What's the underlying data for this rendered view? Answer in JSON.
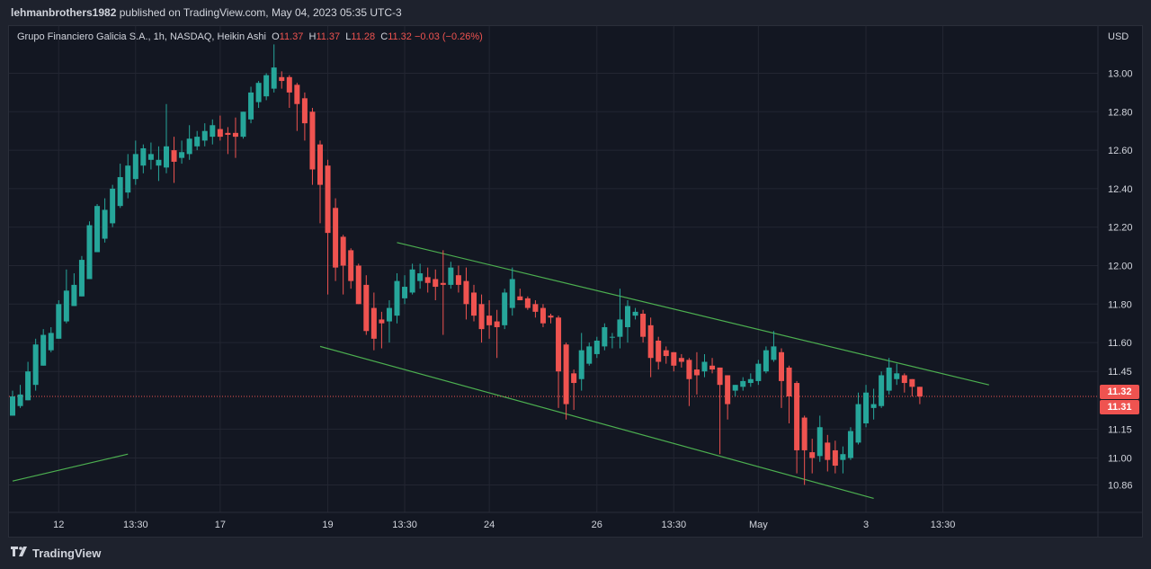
{
  "header": {
    "author": "lehmanbrothers1982",
    "published_text": " published on TradingView.com, May 04, 2023 05:35 UTC-3"
  },
  "legend": {
    "symbol": "Grupo Financiero Galicia S.A., 1h, NASDAQ, Heikin Ashi",
    "o_label": "O",
    "o_value": "11.37",
    "h_label": "H",
    "h_value": "11.37",
    "l_label": "L",
    "l_value": "11.28",
    "c_label": "C",
    "c_value": "11.32",
    "change": "−0.03 (−0.26%)"
  },
  "axis": {
    "currency": "USD",
    "last_price_tag": "11.32",
    "second_price_tag": "11.31"
  },
  "footer": {
    "brand": "TradingView"
  },
  "chart_data": {
    "type": "candlestick",
    "style": "Heikin Ashi",
    "symbol": "Grupo Financiero Galicia S.A.",
    "interval": "1h",
    "exchange": "NASDAQ",
    "currency": "USD",
    "y_ticks": [
      13.0,
      12.8,
      12.6,
      12.4,
      12.2,
      12.0,
      11.8,
      11.6,
      11.45,
      11.15,
      11.0,
      10.86
    ],
    "y_tick_labels": [
      "13.00",
      "12.80",
      "12.60",
      "12.40",
      "12.20",
      "12.00",
      "11.80",
      "11.60",
      "11.45",
      "11.15",
      "11.00",
      "10.86"
    ],
    "x_ticks": [
      {
        "label": "12",
        "bar": 6
      },
      {
        "label": "13:30",
        "bar": 16
      },
      {
        "label": "17",
        "bar": 27
      },
      {
        "label": "19",
        "bar": 41
      },
      {
        "label": "13:30",
        "bar": 51
      },
      {
        "label": "24",
        "bar": 62
      },
      {
        "label": "26",
        "bar": 76
      },
      {
        "label": "13:30",
        "bar": 86
      },
      {
        "label": "May",
        "bar": 97
      },
      {
        "label": "3",
        "bar": 111
      },
      {
        "label": "13:30",
        "bar": 121
      }
    ],
    "ylim": [
      10.7,
      13.2
    ],
    "last_price": 11.32,
    "up_color": "#26a69a",
    "down_color": "#ef5350",
    "trendline_color": "#4caf50",
    "trendlines": [
      {
        "from": {
          "bar": 0,
          "price": 10.88
        },
        "to": {
          "bar": 15,
          "price": 11.02
        }
      },
      {
        "from": {
          "bar": 50,
          "price": 12.12
        },
        "to": {
          "bar": 127,
          "price": 11.38
        }
      },
      {
        "from": {
          "bar": 40,
          "price": 11.58
        },
        "to": {
          "bar": 112,
          "price": 10.79
        }
      }
    ],
    "candles": [
      {
        "o": 11.22,
        "h": 11.35,
        "l": 11.22,
        "c": 11.32
      },
      {
        "o": 11.27,
        "h": 11.38,
        "l": 11.26,
        "c": 11.33
      },
      {
        "o": 11.3,
        "h": 11.5,
        "l": 11.3,
        "c": 11.45
      },
      {
        "o": 11.38,
        "h": 11.62,
        "l": 11.35,
        "c": 11.59
      },
      {
        "o": 11.48,
        "h": 11.67,
        "l": 11.48,
        "c": 11.64
      },
      {
        "o": 11.56,
        "h": 11.68,
        "l": 11.55,
        "c": 11.65
      },
      {
        "o": 11.62,
        "h": 11.82,
        "l": 11.62,
        "c": 11.8
      },
      {
        "o": 11.71,
        "h": 11.98,
        "l": 11.7,
        "c": 11.87
      },
      {
        "o": 11.79,
        "h": 11.96,
        "l": 11.79,
        "c": 11.9
      },
      {
        "o": 11.84,
        "h": 12.05,
        "l": 11.84,
        "c": 12.03
      },
      {
        "o": 11.93,
        "h": 12.23,
        "l": 11.93,
        "c": 12.21
      },
      {
        "o": 12.07,
        "h": 12.32,
        "l": 12.07,
        "c": 12.31
      },
      {
        "o": 12.14,
        "h": 12.35,
        "l": 12.12,
        "c": 12.29
      },
      {
        "o": 12.22,
        "h": 12.42,
        "l": 12.2,
        "c": 12.4
      },
      {
        "o": 12.31,
        "h": 12.53,
        "l": 12.3,
        "c": 12.46
      },
      {
        "o": 12.38,
        "h": 12.58,
        "l": 12.35,
        "c": 12.52
      },
      {
        "o": 12.45,
        "h": 12.65,
        "l": 12.42,
        "c": 12.58
      },
      {
        "o": 12.52,
        "h": 12.63,
        "l": 12.48,
        "c": 12.61
      },
      {
        "o": 12.55,
        "h": 12.64,
        "l": 12.5,
        "c": 12.58
      },
      {
        "o": 12.52,
        "h": 12.62,
        "l": 12.44,
        "c": 12.55
      },
      {
        "o": 12.51,
        "h": 12.84,
        "l": 12.48,
        "c": 12.62
      },
      {
        "o": 12.6,
        "h": 12.67,
        "l": 12.43,
        "c": 12.54
      },
      {
        "o": 12.56,
        "h": 12.65,
        "l": 12.53,
        "c": 12.59
      },
      {
        "o": 12.58,
        "h": 12.73,
        "l": 12.55,
        "c": 12.66
      },
      {
        "o": 12.62,
        "h": 12.7,
        "l": 12.6,
        "c": 12.67
      },
      {
        "o": 12.65,
        "h": 12.74,
        "l": 12.62,
        "c": 12.7
      },
      {
        "o": 12.67,
        "h": 12.76,
        "l": 12.63,
        "c": 12.73
      },
      {
        "o": 12.71,
        "h": 12.78,
        "l": 12.65,
        "c": 12.67
      },
      {
        "o": 12.69,
        "h": 12.72,
        "l": 12.58,
        "c": 12.68
      },
      {
        "o": 12.69,
        "h": 12.77,
        "l": 12.56,
        "c": 12.67
      },
      {
        "o": 12.67,
        "h": 12.8,
        "l": 12.66,
        "c": 12.8
      },
      {
        "o": 12.76,
        "h": 12.93,
        "l": 12.74,
        "c": 12.9
      },
      {
        "o": 12.85,
        "h": 12.96,
        "l": 12.82,
        "c": 12.95
      },
      {
        "o": 12.88,
        "h": 13.0,
        "l": 12.86,
        "c": 12.99
      },
      {
        "o": 12.92,
        "h": 13.15,
        "l": 12.9,
        "c": 13.03
      },
      {
        "o": 12.98,
        "h": 13.01,
        "l": 12.92,
        "c": 12.96
      },
      {
        "o": 12.98,
        "h": 12.99,
        "l": 12.82,
        "c": 12.9
      },
      {
        "o": 12.94,
        "h": 12.95,
        "l": 12.7,
        "c": 12.84
      },
      {
        "o": 12.87,
        "h": 12.9,
        "l": 12.65,
        "c": 12.74
      },
      {
        "o": 12.8,
        "h": 12.82,
        "l": 12.42,
        "c": 12.5
      },
      {
        "o": 12.63,
        "h": 12.65,
        "l": 12.22,
        "c": 12.42
      },
      {
        "o": 12.52,
        "h": 12.55,
        "l": 11.85,
        "c": 12.17
      },
      {
        "o": 12.3,
        "h": 12.35,
        "l": 11.92,
        "c": 11.99
      },
      {
        "o": 12.15,
        "h": 12.16,
        "l": 11.85,
        "c": 12.0
      },
      {
        "o": 12.08,
        "h": 12.09,
        "l": 11.88,
        "c": 11.92
      },
      {
        "o": 12.0,
        "h": 12.01,
        "l": 11.8,
        "c": 11.8
      },
      {
        "o": 11.9,
        "h": 11.95,
        "l": 11.64,
        "c": 11.66
      },
      {
        "o": 11.78,
        "h": 11.86,
        "l": 11.56,
        "c": 11.62
      },
      {
        "o": 11.72,
        "h": 11.76,
        "l": 11.57,
        "c": 11.7
      },
      {
        "o": 11.71,
        "h": 11.82,
        "l": 11.6,
        "c": 11.78
      },
      {
        "o": 11.74,
        "h": 11.96,
        "l": 11.7,
        "c": 11.92
      },
      {
        "o": 11.83,
        "h": 11.95,
        "l": 11.8,
        "c": 11.89
      },
      {
        "o": 11.86,
        "h": 12.01,
        "l": 11.85,
        "c": 11.98
      },
      {
        "o": 11.92,
        "h": 12.01,
        "l": 11.88,
        "c": 11.96
      },
      {
        "o": 11.94,
        "h": 11.99,
        "l": 11.86,
        "c": 11.91
      },
      {
        "o": 11.93,
        "h": 11.98,
        "l": 11.82,
        "c": 11.89
      },
      {
        "o": 11.91,
        "h": 12.08,
        "l": 11.64,
        "c": 11.9
      },
      {
        "o": 11.9,
        "h": 12.02,
        "l": 11.88,
        "c": 11.99
      },
      {
        "o": 11.95,
        "h": 12.0,
        "l": 11.86,
        "c": 11.9
      },
      {
        "o": 11.92,
        "h": 11.99,
        "l": 11.72,
        "c": 11.8
      },
      {
        "o": 11.86,
        "h": 11.9,
        "l": 11.71,
        "c": 11.74
      },
      {
        "o": 11.8,
        "h": 11.85,
        "l": 11.6,
        "c": 11.67
      },
      {
        "o": 11.74,
        "h": 11.82,
        "l": 11.62,
        "c": 11.69
      },
      {
        "o": 11.71,
        "h": 11.77,
        "l": 11.52,
        "c": 11.68
      },
      {
        "o": 11.69,
        "h": 11.88,
        "l": 11.67,
        "c": 11.86
      },
      {
        "o": 11.78,
        "h": 11.99,
        "l": 11.74,
        "c": 11.93
      },
      {
        "o": 11.84,
        "h": 11.88,
        "l": 11.82,
        "c": 11.82
      },
      {
        "o": 11.83,
        "h": 11.84,
        "l": 11.77,
        "c": 11.78
      },
      {
        "o": 11.8,
        "h": 11.82,
        "l": 11.73,
        "c": 11.76
      },
      {
        "o": 11.78,
        "h": 11.8,
        "l": 11.68,
        "c": 11.7
      },
      {
        "o": 11.74,
        "h": 11.75,
        "l": 11.7,
        "c": 11.73
      },
      {
        "o": 11.73,
        "h": 11.74,
        "l": 11.26,
        "c": 11.45
      },
      {
        "o": 11.59,
        "h": 11.6,
        "l": 11.2,
        "c": 11.28
      },
      {
        "o": 11.44,
        "h": 11.46,
        "l": 11.25,
        "c": 11.39
      },
      {
        "o": 11.41,
        "h": 11.65,
        "l": 11.35,
        "c": 11.56
      },
      {
        "o": 11.49,
        "h": 11.6,
        "l": 11.48,
        "c": 11.58
      },
      {
        "o": 11.54,
        "h": 11.63,
        "l": 11.52,
        "c": 11.61
      },
      {
        "o": 11.58,
        "h": 11.7,
        "l": 11.56,
        "c": 11.68
      },
      {
        "o": 11.63,
        "h": 11.65,
        "l": 11.57,
        "c": 11.63
      },
      {
        "o": 11.63,
        "h": 11.88,
        "l": 11.57,
        "c": 11.72
      },
      {
        "o": 11.68,
        "h": 11.82,
        "l": 11.6,
        "c": 11.79
      },
      {
        "o": 11.74,
        "h": 11.78,
        "l": 11.72,
        "c": 11.76
      },
      {
        "o": 11.75,
        "h": 11.77,
        "l": 11.6,
        "c": 11.63
      },
      {
        "o": 11.69,
        "h": 11.73,
        "l": 11.42,
        "c": 11.52
      },
      {
        "o": 11.61,
        "h": 11.63,
        "l": 11.46,
        "c": 11.5
      },
      {
        "o": 11.56,
        "h": 11.58,
        "l": 11.49,
        "c": 11.53
      },
      {
        "o": 11.55,
        "h": 11.55,
        "l": 11.45,
        "c": 11.48
      },
      {
        "o": 11.52,
        "h": 11.54,
        "l": 11.47,
        "c": 11.5
      },
      {
        "o": 11.51,
        "h": 11.52,
        "l": 11.27,
        "c": 11.41
      },
      {
        "o": 11.46,
        "h": 11.55,
        "l": 11.33,
        "c": 11.43
      },
      {
        "o": 11.45,
        "h": 11.54,
        "l": 11.42,
        "c": 11.5
      },
      {
        "o": 11.48,
        "h": 11.52,
        "l": 11.44,
        "c": 11.46
      },
      {
        "o": 11.47,
        "h": 11.47,
        "l": 11.02,
        "c": 11.38
      },
      {
        "o": 11.43,
        "h": 11.43,
        "l": 11.2,
        "c": 11.28
      },
      {
        "o": 11.35,
        "h": 11.38,
        "l": 11.32,
        "c": 11.38
      },
      {
        "o": 11.37,
        "h": 11.42,
        "l": 11.35,
        "c": 11.4
      },
      {
        "o": 11.39,
        "h": 11.44,
        "l": 11.37,
        "c": 11.41
      },
      {
        "o": 11.4,
        "h": 11.51,
        "l": 11.38,
        "c": 11.49
      },
      {
        "o": 11.45,
        "h": 11.58,
        "l": 11.44,
        "c": 11.56
      },
      {
        "o": 11.51,
        "h": 11.66,
        "l": 11.5,
        "c": 11.58
      },
      {
        "o": 11.55,
        "h": 11.57,
        "l": 11.26,
        "c": 11.4
      },
      {
        "o": 11.47,
        "h": 11.48,
        "l": 11.18,
        "c": 11.32
      },
      {
        "o": 11.39,
        "h": 11.4,
        "l": 10.92,
        "c": 11.04
      },
      {
        "o": 11.21,
        "h": 11.22,
        "l": 10.86,
        "c": 11.04
      },
      {
        "o": 11.03,
        "h": 11.1,
        "l": 10.92,
        "c": 11.0
      },
      {
        "o": 11.01,
        "h": 11.22,
        "l": 10.98,
        "c": 11.16
      },
      {
        "o": 11.08,
        "h": 11.12,
        "l": 10.93,
        "c": 10.99
      },
      {
        "o": 11.04,
        "h": 11.09,
        "l": 10.92,
        "c": 10.96
      },
      {
        "o": 10.99,
        "h": 11.06,
        "l": 10.92,
        "c": 11.02
      },
      {
        "o": 11.0,
        "h": 11.16,
        "l": 10.99,
        "c": 11.14
      },
      {
        "o": 11.08,
        "h": 11.34,
        "l": 11.07,
        "c": 11.28
      },
      {
        "o": 11.18,
        "h": 11.38,
        "l": 11.16,
        "c": 11.34
      },
      {
        "o": 11.26,
        "h": 11.36,
        "l": 11.2,
        "c": 11.28
      },
      {
        "o": 11.27,
        "h": 11.45,
        "l": 11.26,
        "c": 11.43
      },
      {
        "o": 11.35,
        "h": 11.52,
        "l": 11.33,
        "c": 11.47
      },
      {
        "o": 11.41,
        "h": 11.49,
        "l": 11.38,
        "c": 11.44
      },
      {
        "o": 11.43,
        "h": 11.44,
        "l": 11.34,
        "c": 11.39
      },
      {
        "o": 11.41,
        "h": 11.41,
        "l": 11.32,
        "c": 11.37
      },
      {
        "o": 11.37,
        "h": 11.37,
        "l": 11.28,
        "c": 11.32
      }
    ]
  }
}
